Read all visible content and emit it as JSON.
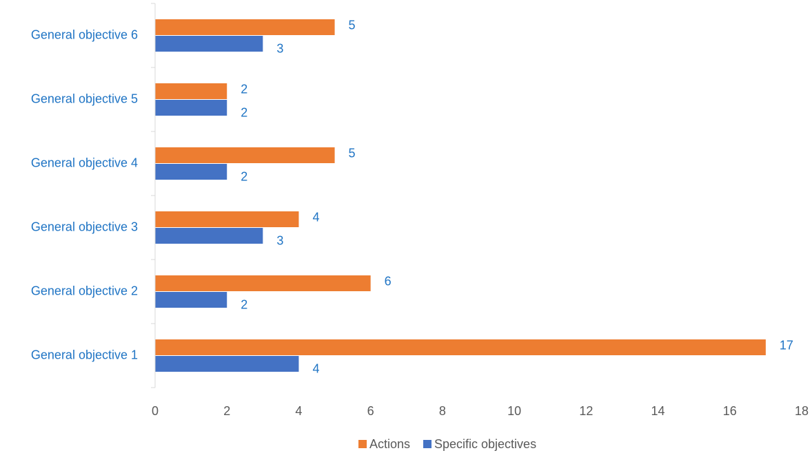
{
  "chart_data": {
    "type": "bar",
    "orientation": "horizontal",
    "categories": [
      "General objective 1",
      "General objective 2",
      "General objective 3",
      "General objective 4",
      "General objective 5",
      "General objective 6"
    ],
    "series": [
      {
        "name": "Actions",
        "color": "#ED7D31",
        "values": [
          17,
          6,
          4,
          5,
          2,
          5
        ]
      },
      {
        "name": "Specific objectives",
        "color": "#4472C4",
        "values": [
          4,
          2,
          3,
          2,
          2,
          3
        ]
      }
    ],
    "xlim": [
      0,
      18
    ],
    "x_ticks": [
      "0",
      "2",
      "4",
      "6",
      "8",
      "10",
      "12",
      "14",
      "16",
      "18"
    ],
    "title": "",
    "xlabel": "",
    "ylabel": "",
    "grid": false,
    "legend_position": "bottom",
    "colors": {
      "category_label": "#1F74C4",
      "data_label": "#1F74C4",
      "tick_label": "#595959",
      "legend_label": "#595959",
      "axis_line": "#D9D9D9"
    }
  }
}
